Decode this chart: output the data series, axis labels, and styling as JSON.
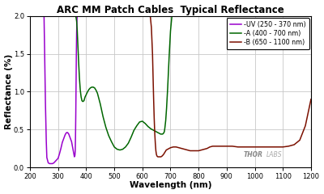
{
  "title": "ARC MM Patch Cables  Typical Reflectance",
  "xlabel": "Wavelength (nm)",
  "ylabel": "Reflectance (%)",
  "xlim": [
    200,
    1200
  ],
  "ylim": [
    0.0,
    2.0
  ],
  "yticks": [
    0.0,
    0.5,
    1.0,
    1.5,
    2.0
  ],
  "xticks": [
    200,
    300,
    400,
    500,
    600,
    700,
    800,
    900,
    1000,
    1100,
    1200
  ],
  "grid_color": "#c8c8c8",
  "background_color": "#ffffff",
  "watermark": "THOR",
  "watermark2": "LABS",
  "legend": [
    {
      "label": "-UV (250 - 370 nm)",
      "color": "#9900CC"
    },
    {
      "label": "-A (400 - 700 nm)",
      "color": "#006600"
    },
    {
      "label": "-B (650 - 1100 nm)",
      "color": "#7B1000"
    }
  ],
  "uv_x": [
    250,
    252,
    255,
    258,
    260,
    265,
    270,
    275,
    280,
    285,
    290,
    295,
    300,
    305,
    310,
    315,
    320,
    325,
    328,
    330,
    332,
    334,
    336,
    338,
    340,
    342,
    344,
    346,
    348,
    350,
    352,
    354,
    356,
    358,
    360,
    361,
    362,
    363,
    364,
    365,
    366,
    367,
    368,
    369,
    370
  ],
  "uv_y": [
    2.0,
    1.55,
    0.85,
    0.35,
    0.13,
    0.06,
    0.05,
    0.05,
    0.05,
    0.06,
    0.08,
    0.1,
    0.12,
    0.18,
    0.25,
    0.33,
    0.38,
    0.43,
    0.45,
    0.46,
    0.46,
    0.46,
    0.45,
    0.44,
    0.42,
    0.4,
    0.38,
    0.36,
    0.34,
    0.3,
    0.26,
    0.22,
    0.18,
    0.14,
    0.16,
    0.22,
    0.4,
    0.7,
    1.1,
    1.5,
    1.78,
    1.92,
    2.0,
    2.0,
    2.0
  ],
  "a_x": [
    355,
    358,
    360,
    362,
    364,
    366,
    368,
    370,
    373,
    376,
    379,
    382,
    385,
    388,
    392,
    396,
    400,
    405,
    410,
    415,
    420,
    425,
    430,
    435,
    440,
    450,
    460,
    470,
    480,
    490,
    500,
    510,
    520,
    530,
    540,
    550,
    560,
    570,
    580,
    590,
    600,
    610,
    620,
    630,
    640,
    650,
    655,
    660,
    665,
    668,
    670,
    672,
    675,
    678,
    680,
    683,
    686,
    690,
    695,
    700,
    705,
    710,
    715
  ],
  "a_y": [
    2.0,
    2.0,
    2.0,
    2.0,
    1.98,
    1.93,
    1.82,
    1.65,
    1.4,
    1.18,
    1.02,
    0.93,
    0.88,
    0.87,
    0.88,
    0.93,
    0.96,
    1.0,
    1.03,
    1.05,
    1.06,
    1.06,
    1.05,
    1.02,
    0.98,
    0.84,
    0.67,
    0.53,
    0.42,
    0.34,
    0.27,
    0.24,
    0.23,
    0.24,
    0.27,
    0.32,
    0.4,
    0.49,
    0.55,
    0.6,
    0.61,
    0.58,
    0.54,
    0.51,
    0.49,
    0.47,
    0.46,
    0.45,
    0.44,
    0.44,
    0.44,
    0.44,
    0.45,
    0.47,
    0.52,
    0.62,
    0.78,
    1.05,
    1.45,
    1.8,
    2.0,
    2.0,
    2.0
  ],
  "b_x": [
    628,
    632,
    636,
    638,
    640,
    642,
    644,
    646,
    648,
    650,
    652,
    655,
    658,
    660,
    663,
    666,
    670,
    675,
    680,
    685,
    690,
    695,
    700,
    710,
    720,
    730,
    740,
    750,
    760,
    770,
    780,
    790,
    800,
    810,
    820,
    830,
    840,
    850,
    860,
    870,
    880,
    900,
    920,
    940,
    960,
    980,
    1000,
    1020,
    1040,
    1060,
    1080,
    1100,
    1120,
    1140,
    1160,
    1180,
    1200
  ],
  "b_y": [
    2.0,
    1.85,
    1.5,
    1.2,
    0.9,
    0.65,
    0.45,
    0.32,
    0.22,
    0.17,
    0.15,
    0.14,
    0.14,
    0.14,
    0.14,
    0.14,
    0.15,
    0.17,
    0.2,
    0.23,
    0.24,
    0.25,
    0.26,
    0.27,
    0.27,
    0.26,
    0.25,
    0.24,
    0.23,
    0.22,
    0.22,
    0.22,
    0.22,
    0.23,
    0.24,
    0.25,
    0.27,
    0.28,
    0.28,
    0.28,
    0.28,
    0.28,
    0.28,
    0.27,
    0.27,
    0.27,
    0.27,
    0.27,
    0.27,
    0.27,
    0.27,
    0.27,
    0.28,
    0.3,
    0.36,
    0.55,
    0.9
  ]
}
